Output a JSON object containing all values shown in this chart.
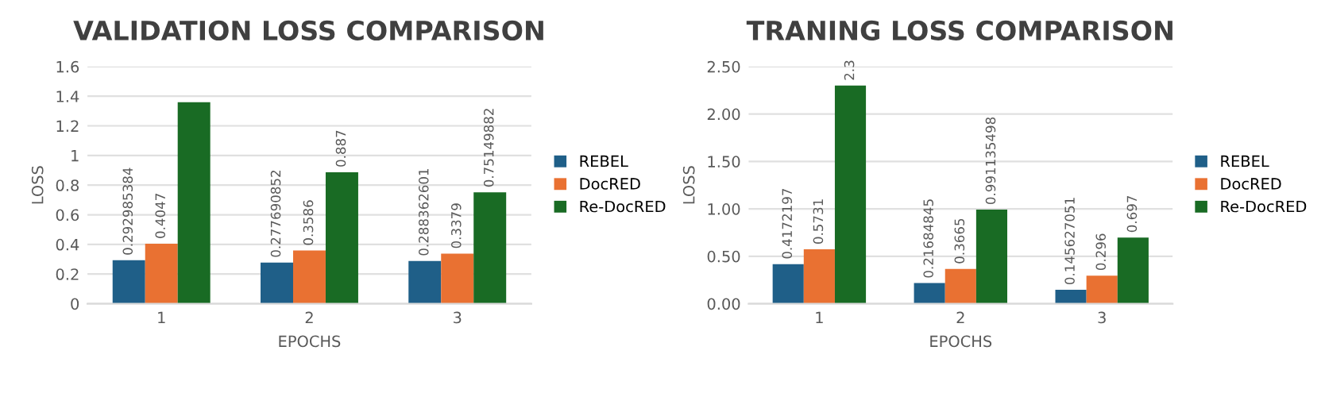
{
  "chart_data": [
    {
      "type": "bar",
      "title": "VALIDATION LOSS COMPARISON",
      "xlabel": "EPOCHS",
      "ylabel": "LOSS",
      "categories": [
        "1",
        "2",
        "3"
      ],
      "series": [
        {
          "name": "REBEL",
          "color": "#1f5f88",
          "values": [
            0.292985384,
            0.277690852,
            0.288362601
          ],
          "value_labels": [
            "0.292985384",
            "0.277690852",
            "0.288362601"
          ]
        },
        {
          "name": "DocRED",
          "color": "#e97132",
          "values": [
            0.4047,
            0.3586,
            0.3379
          ],
          "value_labels": [
            "0.4047",
            "0.3586",
            "0.3379"
          ]
        },
        {
          "name": "Re-DocRED",
          "color": "#196b24",
          "values": [
            1.36,
            0.887,
            0.75149882
          ],
          "value_labels": [
            null,
            "0.887",
            "0.75149882"
          ]
        }
      ],
      "ylim": [
        0,
        1.6
      ],
      "yticks": [
        0,
        0.2,
        0.4,
        0.6,
        0.8,
        1,
        1.2,
        1.4,
        1.6
      ],
      "grid": "y",
      "legend": "right"
    },
    {
      "type": "bar",
      "title": "TRANING LOSS COMPARISON",
      "xlabel": "EPOCHS",
      "ylabel": "LOSS",
      "categories": [
        "1",
        "2",
        "3"
      ],
      "series": [
        {
          "name": "REBEL",
          "color": "#1f5f88",
          "values": [
            0.4172197,
            0.21684845,
            0.145627051
          ],
          "value_labels": [
            "0.4172197",
            "0.21684845",
            "0.145627051"
          ]
        },
        {
          "name": "DocRED",
          "color": "#e97132",
          "values": [
            0.5731,
            0.3665,
            0.296
          ],
          "value_labels": [
            "0.5731",
            "0.3665",
            "0.296"
          ]
        },
        {
          "name": "Re-DocRED",
          "color": "#196b24",
          "values": [
            2.3,
            0.991135498,
            0.697
          ],
          "value_labels": [
            "2.3",
            "0.991135498",
            "0.697"
          ]
        }
      ],
      "ylim": [
        0,
        2.5
      ],
      "yticks": [
        {
          "value": 0,
          "label": "0.00"
        },
        {
          "value": 0.5,
          "label": "0.50"
        },
        {
          "value": 1,
          "label": "1.00"
        },
        {
          "value": 1.5,
          "label": "1.50"
        },
        {
          "value": 2,
          "label": "2.00"
        },
        {
          "value": 2.5,
          "label": "2.50"
        }
      ],
      "grid": "y",
      "legend": "right"
    }
  ]
}
